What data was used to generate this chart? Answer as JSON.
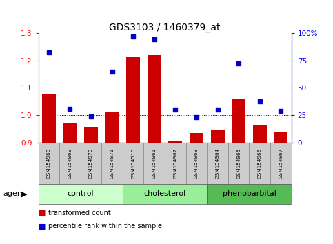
{
  "title": "GDS3103 / 1460379_at",
  "samples": [
    "GSM154968",
    "GSM154969",
    "GSM154970",
    "GSM154971",
    "GSM154510",
    "GSM154961",
    "GSM154962",
    "GSM154963",
    "GSM154964",
    "GSM154965",
    "GSM154966",
    "GSM154967"
  ],
  "bar_values": [
    1.075,
    0.97,
    0.958,
    1.01,
    1.215,
    1.22,
    0.908,
    0.935,
    0.948,
    1.06,
    0.965,
    0.938
  ],
  "scatter_values": [
    82,
    31,
    24,
    65,
    97,
    94,
    30,
    23,
    30,
    72,
    38,
    29
  ],
  "bar_baseline": 0.9,
  "ylim_left": [
    0.9,
    1.3
  ],
  "ylim_right": [
    0,
    100
  ],
  "yticks_left": [
    0.9,
    1.0,
    1.1,
    1.2,
    1.3
  ],
  "yticks_right": [
    0,
    25,
    50,
    75,
    100
  ],
  "yticklabels_right": [
    "0",
    "25",
    "50",
    "75",
    "100%"
  ],
  "dotted_lines": [
    1.0,
    1.1,
    1.2
  ],
  "bar_color": "#cc0000",
  "scatter_color": "#0000cc",
  "agent_label": "agent",
  "legend_bar_label": "transformed count",
  "legend_scatter_label": "percentile rank within the sample",
  "background_color": "#ffffff",
  "sample_bg_color": "#cccccc",
  "group_colors": [
    "#ccffcc",
    "#99ee99",
    "#55bb55"
  ],
  "group_labels": [
    "control",
    "cholesterol",
    "phenobarbital"
  ],
  "group_starts": [
    0,
    4,
    8
  ],
  "group_ends": [
    4,
    8,
    12
  ]
}
